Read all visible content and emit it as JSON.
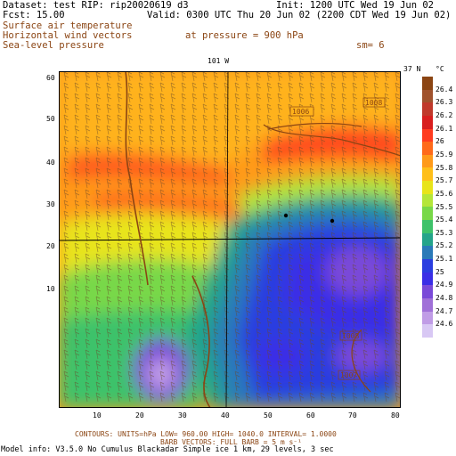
{
  "header": {
    "dataset": "Dataset: test  RIP: rip20020619 d3",
    "init": "Init: 1200 UTC Wed 19 Jun 02",
    "fcst": "Fcst:    15.00",
    "valid": "Valid: 0300 UTC Thu 20 Jun 02 (2200 CDT Wed 19 Jun 02)",
    "fields": [
      "Surface air temperature",
      "Horizontal wind vectors",
      "Sea-level pressure"
    ],
    "pressure": "at pressure =  900 hPa",
    "sm": "sm= 6"
  },
  "map": {
    "lon_top_label": "101 W",
    "lat_right_label": "37 N",
    "xticks": [
      "10",
      "20",
      "30",
      "40",
      "50",
      "60",
      "70",
      "80"
    ],
    "yticks": [
      "60",
      "50",
      "40",
      "30",
      "20",
      "10"
    ],
    "pressure_labels": [
      "1006",
      "1008",
      "1008",
      "1007"
    ]
  },
  "legend": {
    "unit": "°C",
    "values": [
      "26.4",
      "26.3",
      "26.2",
      "26.1",
      "26",
      "25.9",
      "25.8",
      "25.7",
      "25.6",
      "25.5",
      "25.4",
      "25.3",
      "25.2",
      "25.1",
      "25",
      "24.9",
      "24.8",
      "24.7",
      "24.6"
    ],
    "colors": [
      "#8b4513",
      "#a0522d",
      "#c0392b",
      "#d81e1e",
      "#ff3b1f",
      "#ff6a1a",
      "#ff9a1a",
      "#ffbf1a",
      "#e8e41a",
      "#b4e63a",
      "#78d848",
      "#3ec26a",
      "#24a48a",
      "#2a7ab8",
      "#2a3ee0",
      "#3a2ee6",
      "#7a4ad8",
      "#a070d8",
      "#c09ce6",
      "#d8c8f4"
    ]
  },
  "footer": {
    "contours": "CONTOURS:  UNITS=hPa  LOW=  960.00    HIGH= 1040.0    INTERVAL=   1.0000",
    "barbs": "BARB VECTORS:  FULL BARB = 5 m s⁻¹",
    "model": "Model info: V3.5.0 No Cumulus Blackadar  Simple ice   1 km,  29 levels,    3 sec"
  }
}
